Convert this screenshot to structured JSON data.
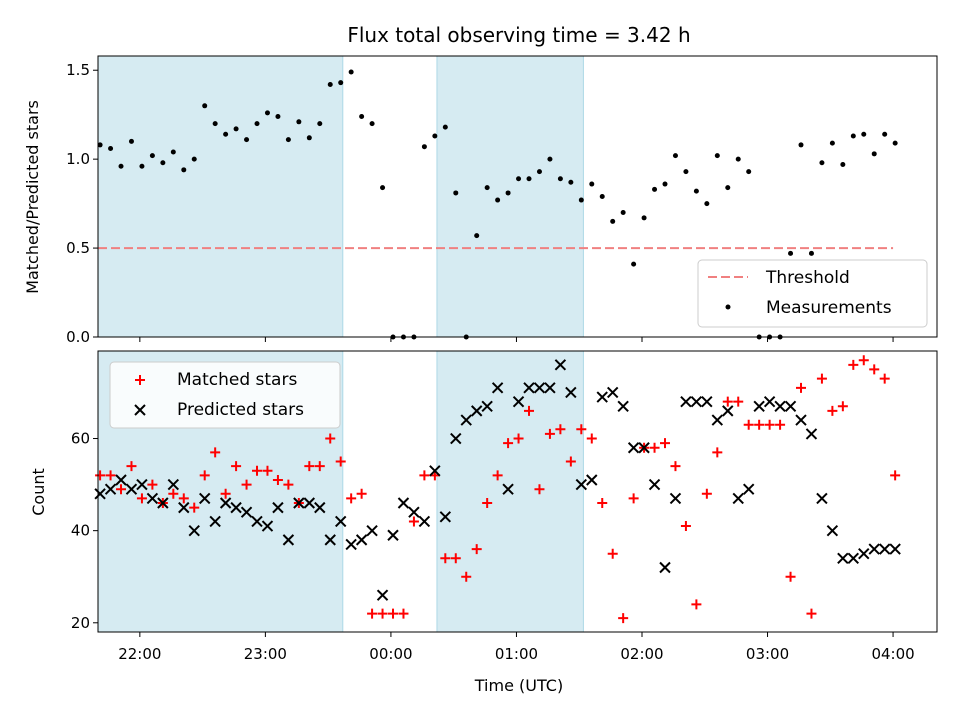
{
  "chart_data": [
    {
      "type": "scatter",
      "panel": "top",
      "title": "Flux total observing time = 3.42 h",
      "xlabel": "",
      "ylabel": "Matched/Predicted stars",
      "xlim": [
        "21:40",
        "04:21"
      ],
      "ylim": [
        0,
        1.58
      ],
      "yticks": [
        0.0,
        0.5,
        1.0,
        1.5
      ],
      "yticklabels": [
        "0.0",
        "0.5",
        "1.0",
        "1.5"
      ],
      "legend": {
        "placement": "lower-right",
        "entries": [
          "Threshold",
          "Measurements"
        ]
      },
      "shaded_intervals": [
        [
          "21:40",
          "23:37"
        ],
        [
          "00:22",
          "01:32"
        ]
      ],
      "threshold": {
        "name": "Threshold",
        "y": 0.5,
        "x_range": [
          "21:40",
          "04:00"
        ],
        "color": "#f08080"
      },
      "series": [
        {
          "name": "Measurements",
          "color": "#000000",
          "x": [
            "21:41",
            "21:46",
            "21:51",
            "21:56",
            "22:01",
            "22:06",
            "22:11",
            "22:16",
            "22:21",
            "22:26",
            "22:31",
            "22:36",
            "22:41",
            "22:46",
            "22:51",
            "22:56",
            "23:01",
            "23:06",
            "23:11",
            "23:16",
            "23:21",
            "23:26",
            "23:31",
            "23:36",
            "23:41",
            "23:46",
            "23:51",
            "23:56",
            "24:01",
            "24:06",
            "24:11",
            "24:16",
            "24:21",
            "24:26",
            "24:31",
            "24:36",
            "24:41",
            "24:46",
            "24:51",
            "24:56",
            "25:01",
            "25:06",
            "25:11",
            "25:16",
            "25:21",
            "25:26",
            "25:31",
            "25:36",
            "25:41",
            "25:46",
            "25:51",
            "25:56",
            "26:01",
            "26:06",
            "26:11",
            "26:16",
            "26:21",
            "26:26",
            "26:31",
            "26:36",
            "26:41",
            "26:46",
            "26:51",
            "26:56",
            "27:01",
            "27:06",
            "27:11",
            "27:16",
            "27:21",
            "27:26",
            "27:31",
            "27:36",
            "27:41",
            "27:46",
            "27:51",
            "27:56",
            "28:01"
          ],
          "y": [
            1.08,
            1.06,
            0.96,
            1.1,
            0.96,
            1.02,
            0.98,
            1.04,
            0.94,
            1.0,
            1.3,
            1.2,
            1.14,
            1.17,
            1.11,
            1.2,
            1.26,
            1.24,
            1.11,
            1.21,
            1.12,
            1.2,
            1.42,
            1.43,
            1.49,
            1.24,
            1.2,
            0.84,
            0.0,
            0.0,
            0.0,
            1.07,
            1.13,
            1.18,
            0.81,
            0.0,
            0.57,
            0.84,
            0.77,
            0.81,
            0.89,
            0.89,
            0.93,
            1.0,
            0.89,
            0.87,
            0.77,
            0.86,
            0.79,
            0.65,
            0.7,
            0.41,
            0.67,
            0.83,
            0.86,
            1.02,
            0.93,
            0.82,
            0.75,
            1.02,
            0.84,
            1.0,
            0.93,
            0.0,
            0.0,
            0.0,
            0.47,
            1.08,
            0.47,
            0.98,
            1.09,
            0.97,
            1.13,
            1.14,
            1.03,
            1.14,
            1.09
          ]
        }
      ]
    },
    {
      "type": "scatter",
      "panel": "bottom",
      "title": "",
      "xlabel": "Time (UTC)",
      "ylabel": "Count",
      "xlim": [
        "21:40",
        "04:21"
      ],
      "ylim": [
        18,
        79
      ],
      "yticks": [
        20,
        40,
        60
      ],
      "yticklabels": [
        "20",
        "40",
        "60"
      ],
      "xticks": [
        "22:00",
        "23:00",
        "00:00",
        "01:00",
        "02:00",
        "03:00",
        "04:00"
      ],
      "legend": {
        "placement": "upper-left",
        "entries": [
          "Matched stars",
          "Predicted stars"
        ]
      },
      "shaded_intervals": [
        [
          "21:40",
          "23:37"
        ],
        [
          "00:22",
          "01:32"
        ]
      ],
      "series": [
        {
          "name": "Matched stars",
          "marker": "+",
          "color": "#ff0000",
          "x": [
            "21:41",
            "21:46",
            "21:51",
            "21:56",
            "22:01",
            "22:06",
            "22:11",
            "22:16",
            "22:21",
            "22:26",
            "22:31",
            "22:36",
            "22:41",
            "22:46",
            "22:51",
            "22:56",
            "23:01",
            "23:06",
            "23:11",
            "23:16",
            "23:21",
            "23:26",
            "23:31",
            "23:36",
            "23:41",
            "23:46",
            "23:51",
            "23:56",
            "24:01",
            "24:06",
            "24:11",
            "24:16",
            "24:21",
            "24:26",
            "24:31",
            "24:36",
            "24:41",
            "24:46",
            "24:51",
            "24:56",
            "25:01",
            "25:06",
            "25:11",
            "25:16",
            "25:21",
            "25:26",
            "25:31",
            "25:36",
            "25:41",
            "25:46",
            "25:51",
            "25:56",
            "26:01",
            "26:06",
            "26:11",
            "26:16",
            "26:21",
            "26:26",
            "26:31",
            "26:36",
            "26:41",
            "26:46",
            "26:51",
            "26:56",
            "27:01",
            "27:06",
            "27:11",
            "27:16",
            "27:21",
            "27:26",
            "27:31",
            "27:36",
            "27:41",
            "27:46",
            "27:51",
            "27:56",
            "28:01"
          ],
          "y": [
            52,
            52,
            49,
            54,
            47,
            50,
            46,
            48,
            47,
            45,
            52,
            57,
            48,
            54,
            50,
            53,
            53,
            51,
            50,
            46,
            54,
            54,
            60,
            55,
            47,
            48,
            22,
            22,
            22,
            22,
            42,
            52,
            52,
            34,
            34,
            30,
            36,
            46,
            52,
            59,
            60,
            66,
            49,
            61,
            62,
            55,
            62,
            60,
            46,
            35,
            21,
            47,
            58,
            58,
            59,
            54,
            41,
            24,
            48,
            57,
            68,
            68,
            63,
            63,
            63,
            63,
            30,
            71,
            22,
            73,
            66,
            67,
            76,
            77,
            75,
            73,
            52
          ]
        },
        {
          "name": "Predicted stars",
          "marker": "x",
          "color": "#000000",
          "x": [
            "21:41",
            "21:46",
            "21:51",
            "21:56",
            "22:01",
            "22:06",
            "22:11",
            "22:16",
            "22:21",
            "22:26",
            "22:31",
            "22:36",
            "22:41",
            "22:46",
            "22:51",
            "22:56",
            "23:01",
            "23:06",
            "23:11",
            "23:16",
            "23:21",
            "23:26",
            "23:31",
            "23:36",
            "23:41",
            "23:46",
            "23:51",
            "23:56",
            "24:01",
            "24:06",
            "24:11",
            "24:16",
            "24:21",
            "24:26",
            "24:31",
            "24:36",
            "24:41",
            "24:46",
            "24:51",
            "24:56",
            "25:01",
            "25:06",
            "25:11",
            "25:16",
            "25:21",
            "25:26",
            "25:31",
            "25:36",
            "25:41",
            "25:46",
            "25:51",
            "25:56",
            "26:01",
            "26:06",
            "26:11",
            "26:16",
            "26:21",
            "26:26",
            "26:31",
            "26:36",
            "26:41",
            "26:46",
            "26:51",
            "26:56",
            "27:01",
            "27:06",
            "27:11",
            "27:16",
            "27:21",
            "27:26",
            "27:31",
            "27:36",
            "27:41",
            "27:46",
            "27:51",
            "27:56",
            "28:01"
          ],
          "y": [
            48,
            49,
            51,
            49,
            50,
            47,
            46,
            50,
            45,
            40,
            47,
            42,
            46,
            45,
            44,
            42,
            41,
            45,
            38,
            46,
            46,
            45,
            38,
            42,
            37,
            38,
            40,
            26,
            39,
            46,
            44,
            42,
            53,
            43,
            60,
            64,
            66,
            67,
            71,
            49,
            68,
            71,
            71,
            71,
            76,
            70,
            50,
            51,
            69,
            70,
            67,
            58,
            58,
            50,
            32,
            47,
            68,
            68,
            68,
            64,
            66,
            47,
            49,
            67,
            68,
            67,
            67,
            64,
            61,
            47,
            40,
            34,
            34,
            35,
            36,
            36,
            36
          ]
        }
      ]
    }
  ]
}
